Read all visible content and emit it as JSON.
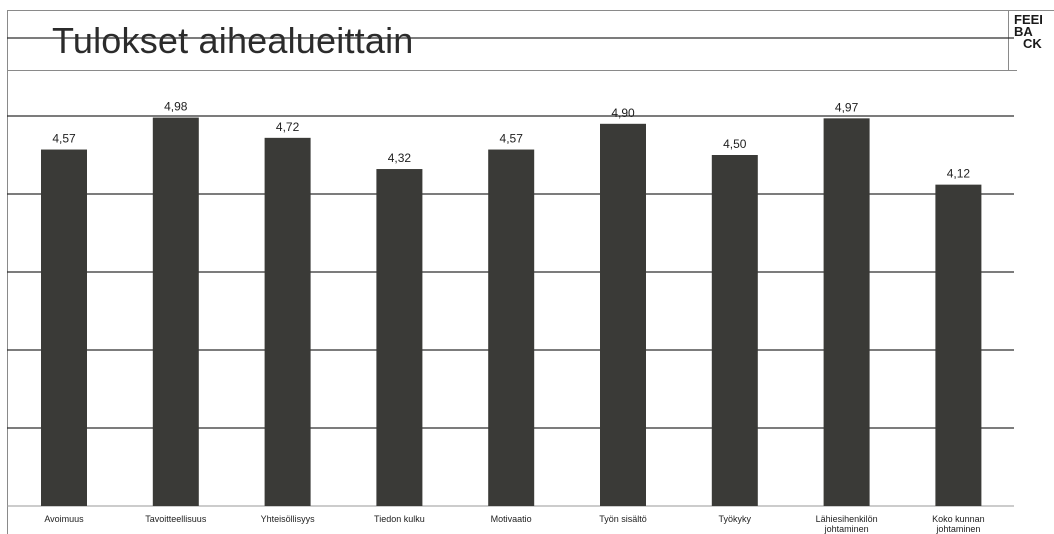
{
  "slide": {
    "title": "Tulokset aihealueittain",
    "logo_text": [
      "FEEI",
      "BA",
      "CK"
    ]
  },
  "colors": {
    "bar": "#3a3a37",
    "gridline": "#2f2f2f",
    "text": "#1e1e1e"
  },
  "chart_data": {
    "type": "bar",
    "title": "",
    "xlabel": "",
    "ylabel": "",
    "ylim": [
      0,
      6
    ],
    "grid": true,
    "categories": [
      "Avoimuus",
      "Tavoitteellisuus",
      "Yhteisöllisyys",
      "Tiedon kulku",
      "Motivaatio",
      "Työn sisältö",
      "Työkyky",
      "Lähiesihenkilön johtaminen",
      "Koko kunnan johtaminen"
    ],
    "category_lines": [
      [
        "Avoimuus"
      ],
      [
        "Tavoitteellisuus"
      ],
      [
        "Yhteisöllisyys"
      ],
      [
        "Tiedon kulku"
      ],
      [
        "Motivaatio"
      ],
      [
        "Työn sisältö"
      ],
      [
        "Työkyky"
      ],
      [
        "Lähiesihenkilön",
        "johtaminen"
      ],
      [
        "Koko kunnan",
        "johtaminen"
      ]
    ],
    "values": [
      4.57,
      4.98,
      4.72,
      4.32,
      4.57,
      4.9,
      4.5,
      4.97,
      4.12
    ],
    "value_labels": [
      "4,57",
      "4,98",
      "4,72",
      "4,32",
      "4,57",
      "4,90",
      "4,50",
      "4,97",
      "4,12"
    ]
  }
}
